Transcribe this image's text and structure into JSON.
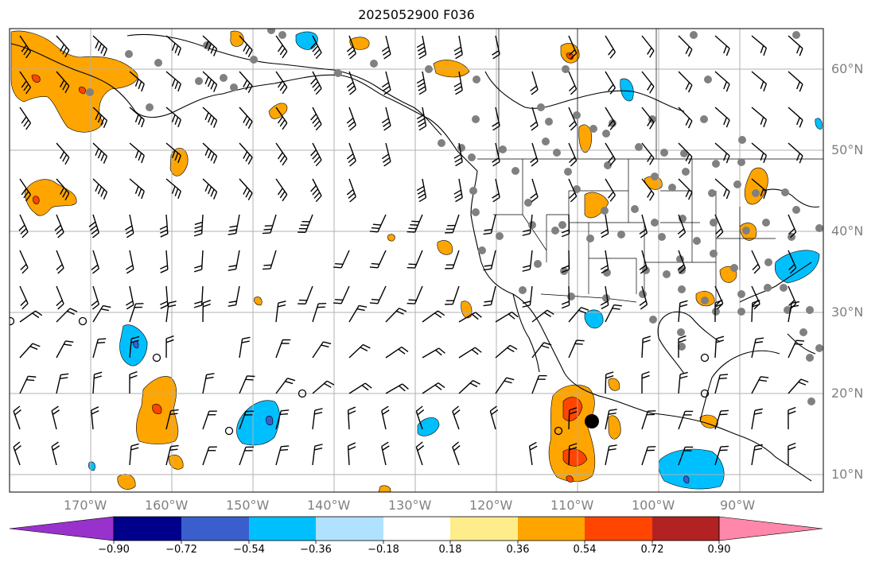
{
  "title": "2025052900 F036",
  "lat_labels": [
    "60°N",
    "50°N",
    "40°N",
    "30°N",
    "20°N",
    "10°N"
  ],
  "lon_labels": [
    "170°W",
    "160°W",
    "150°W",
    "140°W",
    "130°W",
    "120°W",
    "110°W",
    "100°W",
    "90°W"
  ],
  "colorbar": {
    "ticks": [
      "−0.90",
      "−0.72",
      "−0.54",
      "−0.36",
      "−0.18",
      "0.18",
      "0.36",
      "0.54",
      "0.72",
      "0.90"
    ],
    "colors": [
      "#9932cc",
      "#00008b",
      "#3a5fcd",
      "#00bfff",
      "#b0e2ff",
      "#ffffff",
      "#ffec8b",
      "#ffa500",
      "#ff4500",
      "#b22222",
      "#ff88aa"
    ]
  },
  "colors": {
    "orange": "#ffa500",
    "red_orange": "#ff4500",
    "dark_red": "#b22222",
    "deep_sky_blue": "#00bfff",
    "light_blue": "#b0e2ff",
    "royal_blue": "#3a5fcd",
    "station_gray": "#808080",
    "grid_gray": "#b0b0b0"
  }
}
